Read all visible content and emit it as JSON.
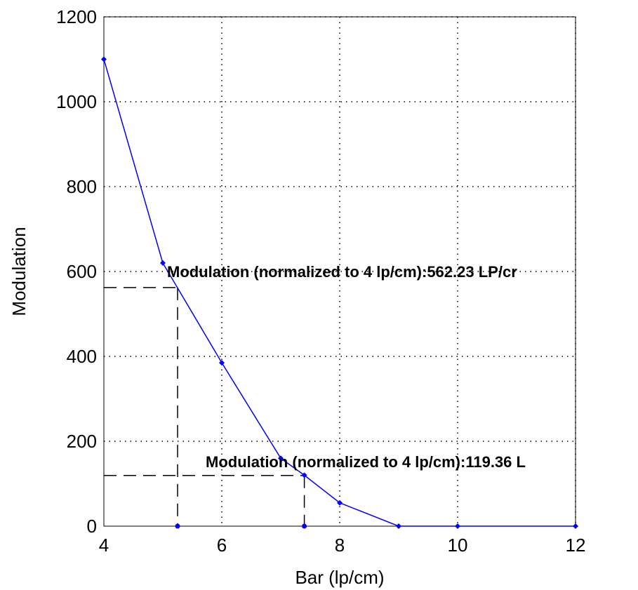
{
  "chart_data": {
    "type": "line",
    "xlabel": "Bar (lp/cm)",
    "ylabel": "Modulation",
    "xlim": [
      4,
      12
    ],
    "ylim": [
      0,
      1200
    ],
    "xticks": [
      "4",
      "6",
      "8",
      "10",
      "12"
    ],
    "yticks": [
      "0",
      "200",
      "400",
      "600",
      "800",
      "1000",
      "1200"
    ],
    "grid": true,
    "line_color": "#0000ff",
    "series": [
      {
        "x": [
          4,
          5,
          6,
          7,
          7.4,
          8,
          9,
          10,
          12
        ],
        "y": [
          1100,
          620,
          385,
          160,
          120,
          55,
          0,
          0,
          0
        ]
      }
    ],
    "reference_lines": [
      {
        "x": 5.25,
        "y": 562.23,
        "label": "Modulation (normalized to 4 lp/cm):562.23  LP/cr"
      },
      {
        "x": 7.4,
        "y": 119.36,
        "label": "Modulation (normalized to 4 lp/cm):119.36  L"
      }
    ]
  }
}
